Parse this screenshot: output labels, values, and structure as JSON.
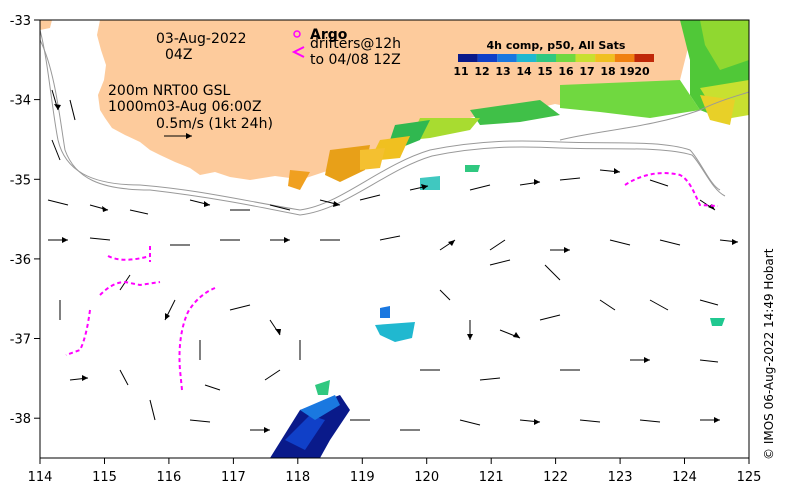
{
  "map": {
    "x_axis_ticks": [
      "114",
      "115",
      "116",
      "117",
      "118",
      "119",
      "120",
      "121",
      "122",
      "123",
      "124",
      "125"
    ],
    "y_axis_ticks": [
      "-33",
      "-34",
      "-35",
      "-36",
      "-37",
      "-38"
    ],
    "lon_range": [
      114,
      125
    ],
    "lat_range": [
      -38.5,
      -33
    ]
  },
  "header": {
    "date": "03-Aug-2022",
    "time": "04Z"
  },
  "legend": {
    "argo_title": "Argo",
    "drifters_line1": "drifters@12h",
    "drifters_line2": "to 04/08 12Z"
  },
  "info": {
    "line1": "200m  NRT00 GSL",
    "line2": "1000m03-Aug 06:00Z",
    "scale_text": "0.5m/s (1kt 24h)"
  },
  "colorbar": {
    "title": "4h comp, p50, All Sats",
    "labels": [
      "11",
      "12",
      "13",
      "14",
      "15",
      "16",
      "17",
      "18",
      "19",
      "20"
    ],
    "colors": [
      "#0a1a8a",
      "#1040c8",
      "#1a78e0",
      "#20b8d0",
      "#30c880",
      "#70d840",
      "#c8e030",
      "#f0c020",
      "#f08010",
      "#c02808"
    ]
  },
  "credit": "© IMOS 06-Aug-2022 14:49 Hobart"
}
